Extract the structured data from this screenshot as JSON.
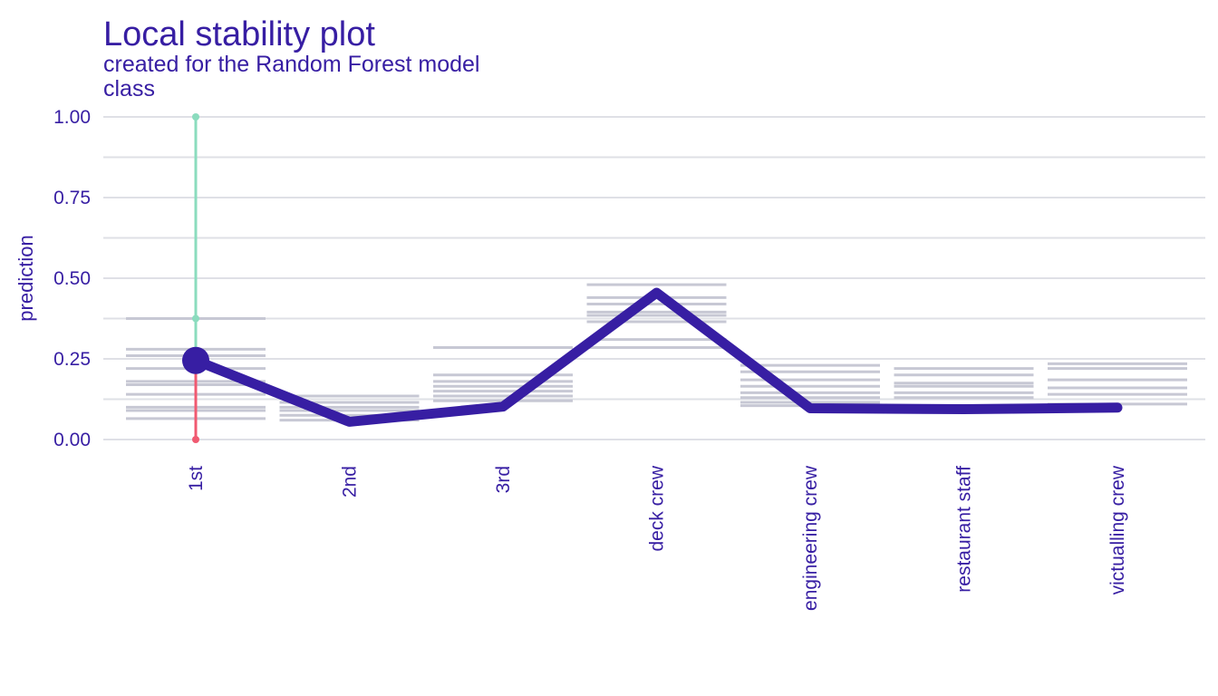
{
  "chart_data": {
    "type": "line",
    "title": "Local stability plot",
    "subtitle": "created for the Random Forest model",
    "variable_label": "class",
    "xlabel": "",
    "ylabel": "prediction",
    "ylim": [
      0,
      1
    ],
    "yticks": [
      "0.00",
      "0.25",
      "0.50",
      "0.75",
      "1.00"
    ],
    "grid": true,
    "categories": [
      "1st",
      "2nd",
      "3rd",
      "deck crew",
      "engineering crew",
      "restaurant staff",
      "victualling crew"
    ],
    "series": [
      {
        "values": [
          0.245,
          0.055,
          0.102,
          0.455,
          0.097,
          0.094,
          0.099
        ]
      }
    ],
    "observation": {
      "category": "1st",
      "value": 0.245
    },
    "neighbor_predictions": [
      [
        0.375,
        0.28,
        0.26,
        0.22,
        0.18,
        0.17,
        0.14,
        0.1,
        0.09,
        0.065
      ],
      [
        0.135,
        0.115,
        0.1,
        0.09,
        0.075,
        0.06
      ],
      [
        0.285,
        0.2,
        0.18,
        0.165,
        0.15,
        0.135,
        0.12
      ],
      [
        0.48,
        0.44,
        0.42,
        0.395,
        0.385,
        0.365,
        0.31,
        0.285
      ],
      [
        0.23,
        0.21,
        0.185,
        0.165,
        0.145,
        0.13,
        0.115,
        0.105
      ],
      [
        0.22,
        0.2,
        0.175,
        0.165,
        0.145,
        0.13
      ],
      [
        0.235,
        0.22,
        0.185,
        0.16,
        0.14,
        0.11
      ]
    ],
    "stability_segment": {
      "category": "1st",
      "min": 0.0,
      "max": 1.0,
      "mid": 0.375,
      "value": 0.245
    },
    "colors": {
      "text": "#371ea3",
      "line": "#371ea3",
      "neighbors": "#c7c8d4",
      "grid": "#dfe0e6",
      "increase": "#8bdcbe",
      "decrease": "#f05a71"
    }
  }
}
